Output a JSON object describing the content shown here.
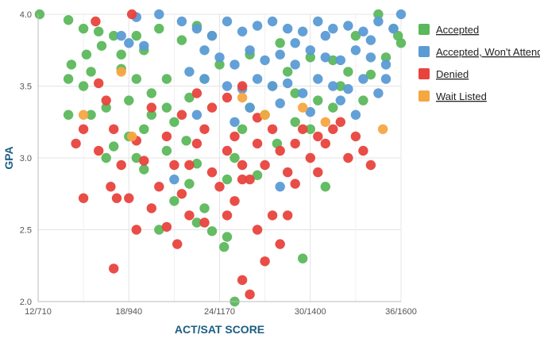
{
  "chart_data": {
    "type": "scatter",
    "xlabel": "ACT/SAT SCORE",
    "ylabel": "GPA",
    "x_ticks": [
      "12/710",
      "18/940",
      "24/1170",
      "30/1400",
      "36/1600"
    ],
    "y_ticks": [
      "2.0",
      "2.5",
      "3.0",
      "3.5",
      "4.0"
    ],
    "xlim": [
      12,
      36
    ],
    "ylim": [
      2.0,
      4.0
    ],
    "grid": true,
    "legend_position": "right",
    "series": [
      {
        "name": "Accepted",
        "color": "#5cb85c",
        "points": [
          [
            12.1,
            4.0
          ],
          [
            14.0,
            3.96
          ],
          [
            15.0,
            3.9
          ],
          [
            16.0,
            3.88
          ],
          [
            17.0,
            3.85
          ],
          [
            18.5,
            3.85
          ],
          [
            20.0,
            3.9
          ],
          [
            21.5,
            3.82
          ],
          [
            22.5,
            3.92
          ],
          [
            19.0,
            3.75
          ],
          [
            17.5,
            3.62
          ],
          [
            15.5,
            3.6
          ],
          [
            14.2,
            3.65
          ],
          [
            14.0,
            3.55
          ],
          [
            15.0,
            3.5
          ],
          [
            14.0,
            3.3
          ],
          [
            15.5,
            3.3
          ],
          [
            16.5,
            3.35
          ],
          [
            18.0,
            3.4
          ],
          [
            19.5,
            3.45
          ],
          [
            20.5,
            3.55
          ],
          [
            21.0,
            3.25
          ],
          [
            19.0,
            3.2
          ],
          [
            18.0,
            3.15
          ],
          [
            17.0,
            3.08
          ],
          [
            16.5,
            3.0
          ],
          [
            18.5,
            3.0
          ],
          [
            19.0,
            2.92
          ],
          [
            20.5,
            3.05
          ],
          [
            21.8,
            3.12
          ],
          [
            22.5,
            2.96
          ],
          [
            22.0,
            2.82
          ],
          [
            23.0,
            2.65
          ],
          [
            22.5,
            2.55
          ],
          [
            23.5,
            2.49
          ],
          [
            24.5,
            2.45
          ],
          [
            24.3,
            2.38
          ],
          [
            25.0,
            2.0
          ],
          [
            21.0,
            2.7
          ],
          [
            20.0,
            2.5
          ],
          [
            29.5,
            2.3
          ],
          [
            31.0,
            2.8
          ],
          [
            25.0,
            3.0
          ],
          [
            26.0,
            3.35
          ],
          [
            27.5,
            3.5
          ],
          [
            28.5,
            3.6
          ],
          [
            30.0,
            3.7
          ],
          [
            31.5,
            3.68
          ],
          [
            32.5,
            3.6
          ],
          [
            34.0,
            3.58
          ],
          [
            35.0,
            3.7
          ],
          [
            36.0,
            3.8
          ],
          [
            35.5,
            3.9
          ],
          [
            34.5,
            4.0
          ],
          [
            33.0,
            3.85
          ],
          [
            30.5,
            3.4
          ],
          [
            29.0,
            3.45
          ],
          [
            27.0,
            3.3
          ],
          [
            25.5,
            3.2
          ],
          [
            24.0,
            3.65
          ],
          [
            23.0,
            3.55
          ],
          [
            22.0,
            3.42
          ],
          [
            20.5,
            3.35
          ],
          [
            19.5,
            3.3
          ],
          [
            18.5,
            3.55
          ],
          [
            17.5,
            3.72
          ],
          [
            16.2,
            3.78
          ],
          [
            15.2,
            3.72
          ],
          [
            23.5,
            3.85
          ],
          [
            26.0,
            3.72
          ],
          [
            28.0,
            3.8
          ],
          [
            32.0,
            3.5
          ],
          [
            33.5,
            3.4
          ],
          [
            35.8,
            3.85
          ],
          [
            30.0,
            3.2
          ],
          [
            27.8,
            3.1
          ],
          [
            26.5,
            2.88
          ],
          [
            24.5,
            2.85
          ],
          [
            29.0,
            3.25
          ],
          [
            31.5,
            3.35
          ]
        ]
      },
      {
        "name": "Accepted, Won't Attend",
        "color": "#5b9bd5",
        "points": [
          [
            18.5,
            3.98
          ],
          [
            20.0,
            4.0
          ],
          [
            21.5,
            3.95
          ],
          [
            22.5,
            3.9
          ],
          [
            23.5,
            3.85
          ],
          [
            24.5,
            3.95
          ],
          [
            25.5,
            3.88
          ],
          [
            26.5,
            3.92
          ],
          [
            27.5,
            3.95
          ],
          [
            28.5,
            3.9
          ],
          [
            29.5,
            3.88
          ],
          [
            30.5,
            3.95
          ],
          [
            31.5,
            3.9
          ],
          [
            32.5,
            3.92
          ],
          [
            33.5,
            3.88
          ],
          [
            34.5,
            3.95
          ],
          [
            35.5,
            3.9
          ],
          [
            36.0,
            4.0
          ],
          [
            24.0,
            3.7
          ],
          [
            25.0,
            3.65
          ],
          [
            26.0,
            3.75
          ],
          [
            27.0,
            3.68
          ],
          [
            28.0,
            3.72
          ],
          [
            29.0,
            3.65
          ],
          [
            30.0,
            3.75
          ],
          [
            31.0,
            3.7
          ],
          [
            32.0,
            3.68
          ],
          [
            33.0,
            3.75
          ],
          [
            34.0,
            3.7
          ],
          [
            35.0,
            3.65
          ],
          [
            22.0,
            3.6
          ],
          [
            23.0,
            3.55
          ],
          [
            24.5,
            3.5
          ],
          [
            25.5,
            3.48
          ],
          [
            26.5,
            3.55
          ],
          [
            27.5,
            3.5
          ],
          [
            28.5,
            3.52
          ],
          [
            29.5,
            3.45
          ],
          [
            30.5,
            3.55
          ],
          [
            31.5,
            3.5
          ],
          [
            32.5,
            3.48
          ],
          [
            33.5,
            3.55
          ],
          [
            34.5,
            3.45
          ],
          [
            26.0,
            3.35
          ],
          [
            28.0,
            3.38
          ],
          [
            30.0,
            3.32
          ],
          [
            32.0,
            3.4
          ],
          [
            22.5,
            3.3
          ],
          [
            21.0,
            2.85
          ],
          [
            28.0,
            2.8
          ],
          [
            19.0,
            3.78
          ],
          [
            18.0,
            3.8
          ],
          [
            17.5,
            3.85
          ],
          [
            33.0,
            3.3
          ],
          [
            35.0,
            3.55
          ],
          [
            25.0,
            3.25
          ],
          [
            23.0,
            3.75
          ],
          [
            29.0,
            3.8
          ],
          [
            31.0,
            3.85
          ],
          [
            34.0,
            3.82
          ]
        ]
      },
      {
        "name": "Denied",
        "color": "#e8433d",
        "points": [
          [
            18.2,
            4.0
          ],
          [
            15.8,
            3.95
          ],
          [
            16.0,
            3.52
          ],
          [
            16.5,
            3.4
          ],
          [
            15.0,
            3.2
          ],
          [
            14.5,
            3.1
          ],
          [
            16.0,
            3.05
          ],
          [
            17.0,
            3.2
          ],
          [
            17.5,
            2.95
          ],
          [
            16.8,
            2.8
          ],
          [
            17.2,
            2.72
          ],
          [
            15.0,
            2.72
          ],
          [
            18.0,
            2.72
          ],
          [
            18.5,
            2.5
          ],
          [
            19.5,
            2.65
          ],
          [
            20.0,
            2.8
          ],
          [
            20.5,
            2.52
          ],
          [
            21.2,
            2.4
          ],
          [
            17.0,
            2.23
          ],
          [
            22.0,
            2.95
          ],
          [
            22.5,
            3.1
          ],
          [
            23.0,
            3.2
          ],
          [
            23.5,
            2.9
          ],
          [
            24.0,
            2.8
          ],
          [
            24.5,
            3.05
          ],
          [
            25.0,
            3.15
          ],
          [
            25.5,
            2.95
          ],
          [
            26.0,
            2.85
          ],
          [
            26.5,
            3.1
          ],
          [
            27.0,
            2.95
          ],
          [
            27.5,
            3.2
          ],
          [
            28.0,
            3.05
          ],
          [
            28.5,
            2.9
          ],
          [
            29.0,
            3.1
          ],
          [
            29.5,
            3.2
          ],
          [
            30.0,
            3.0
          ],
          [
            30.5,
            2.9
          ],
          [
            31.0,
            3.1
          ],
          [
            31.5,
            3.2
          ],
          [
            32.0,
            3.25
          ],
          [
            24.5,
            2.6
          ],
          [
            25.0,
            2.7
          ],
          [
            25.5,
            2.15
          ],
          [
            26.5,
            2.5
          ],
          [
            27.0,
            2.28
          ],
          [
            26.0,
            2.05
          ],
          [
            28.0,
            2.4
          ],
          [
            28.5,
            2.6
          ],
          [
            27.5,
            2.6
          ],
          [
            25.5,
            2.85
          ],
          [
            33.0,
            3.15
          ],
          [
            33.5,
            3.05
          ],
          [
            34.0,
            2.95
          ],
          [
            32.5,
            3.0
          ],
          [
            21.5,
            3.3
          ],
          [
            22.5,
            3.45
          ],
          [
            23.5,
            3.35
          ],
          [
            24.5,
            3.42
          ],
          [
            25.5,
            3.5
          ],
          [
            26.5,
            3.28
          ],
          [
            19.5,
            3.35
          ],
          [
            20.5,
            3.15
          ],
          [
            21.0,
            2.95
          ],
          [
            19.0,
            2.98
          ],
          [
            18.5,
            3.12
          ],
          [
            23.0,
            2.55
          ],
          [
            22.0,
            2.6
          ],
          [
            21.5,
            2.75
          ],
          [
            29.0,
            2.82
          ],
          [
            30.5,
            3.15
          ]
        ]
      },
      {
        "name": "Wait Listed",
        "color": "#f5a742",
        "points": [
          [
            15.0,
            3.3
          ],
          [
            17.5,
            3.6
          ],
          [
            18.2,
            3.15
          ],
          [
            27.0,
            3.3
          ],
          [
            29.5,
            3.35
          ],
          [
            34.8,
            3.2
          ],
          [
            31.0,
            3.25
          ],
          [
            25.5,
            3.42
          ]
        ]
      }
    ]
  }
}
